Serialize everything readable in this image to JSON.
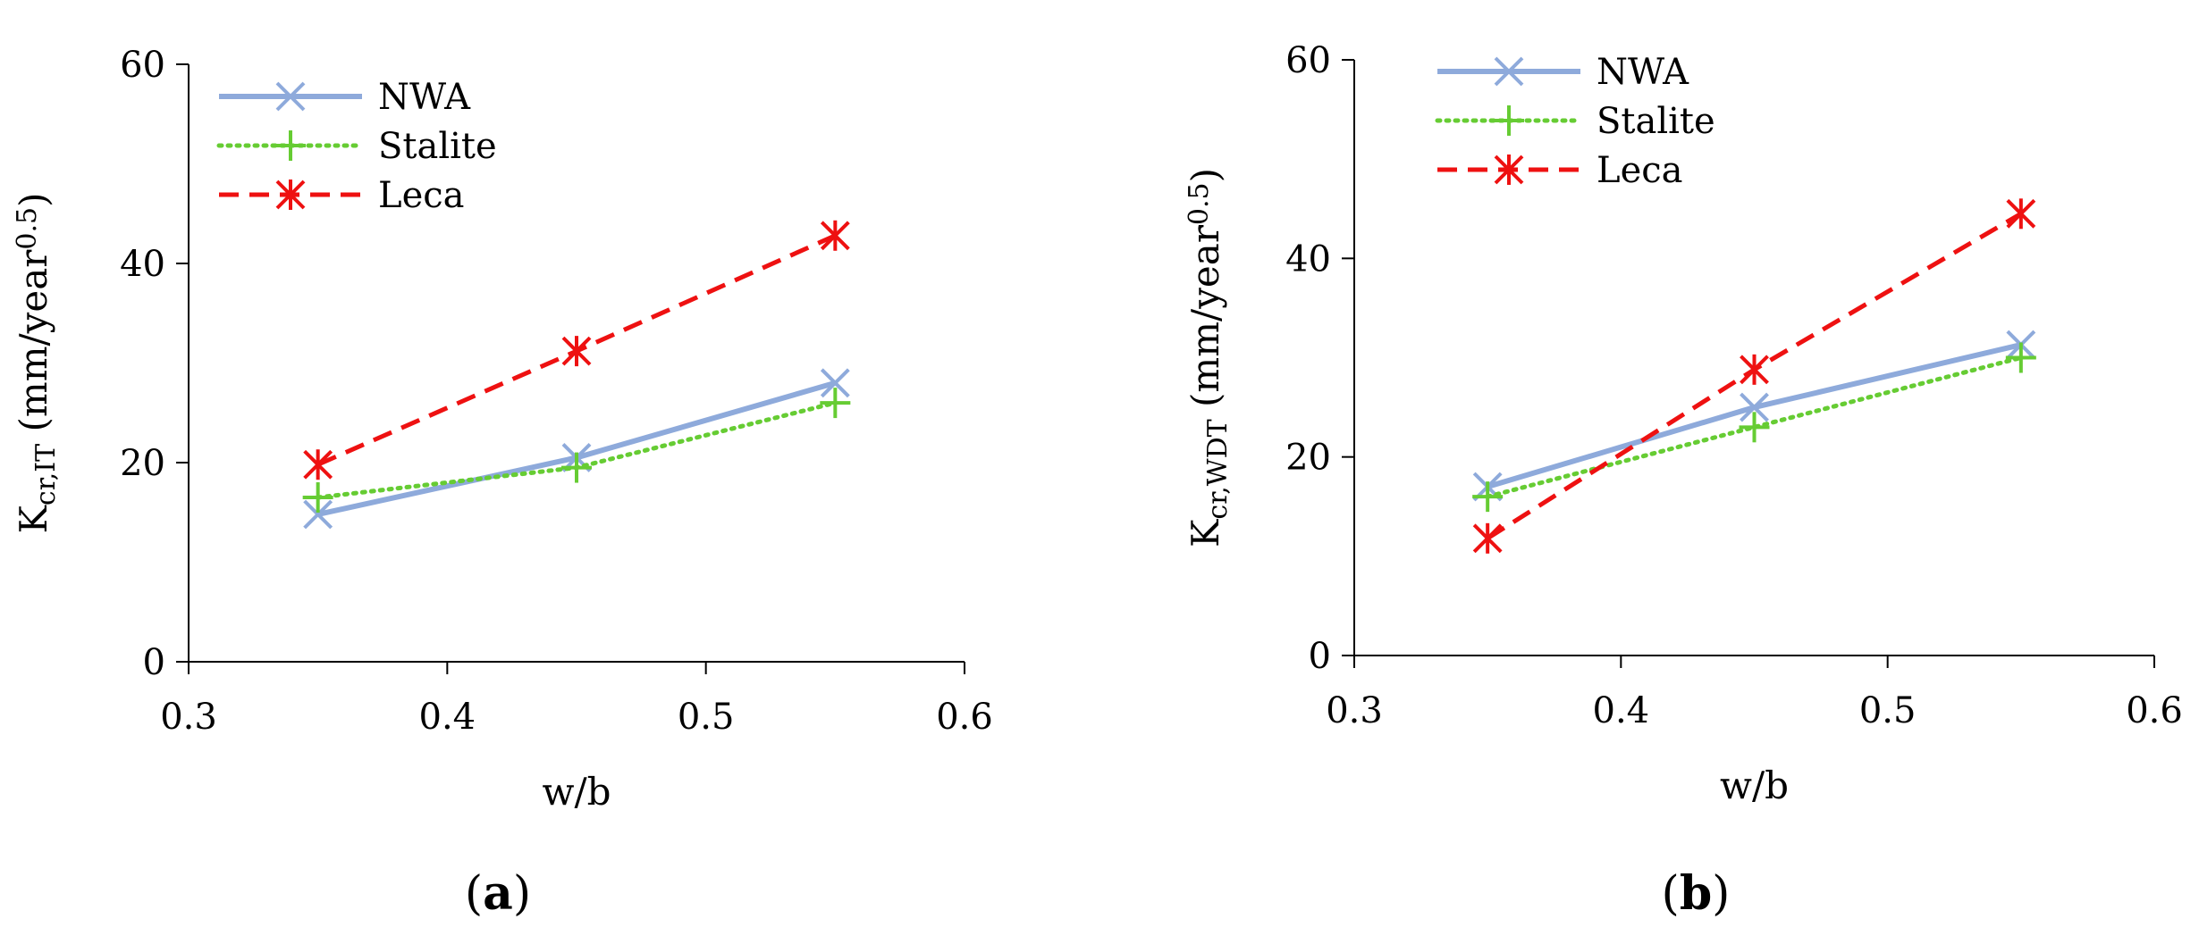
{
  "chart_data": [
    {
      "id": "a",
      "type": "line",
      "panel_label": "a",
      "xlabel": "w/b",
      "ylabel_main": "K",
      "ylabel_sub": "cr,IT",
      "ylabel_rest": " (mm/year",
      "ylabel_sup": "0.5",
      "ylabel_close": ")",
      "xlim": [
        0.3,
        0.6
      ],
      "ylim": [
        0,
        60
      ],
      "xticks": [
        "0.3",
        "0.4",
        "0.5",
        "0.6"
      ],
      "yticks": [
        "0",
        "20",
        "40",
        "60"
      ],
      "legend_position": "top-left",
      "x": [
        0.35,
        0.45,
        0.55
      ],
      "series": [
        {
          "name": "NWA",
          "values": [
            14.8,
            20.5,
            28.0
          ],
          "color": "#8EAADB",
          "style": "solid",
          "marker": "x"
        },
        {
          "name": "Stalite",
          "values": [
            16.5,
            19.5,
            26.0
          ],
          "color": "#66CC33",
          "style": "dotted",
          "marker": "plus"
        },
        {
          "name": "Leca",
          "values": [
            19.8,
            31.2,
            42.8
          ],
          "color": "#EE1111",
          "style": "dashed",
          "marker": "star"
        }
      ]
    },
    {
      "id": "b",
      "type": "line",
      "panel_label": "b",
      "xlabel": "w/b",
      "ylabel_main": "K",
      "ylabel_sub": "cr,WDT",
      "ylabel_rest": " (mm/year",
      "ylabel_sup": "0.5",
      "ylabel_close": ")",
      "xlim": [
        0.3,
        0.6
      ],
      "ylim": [
        0,
        60
      ],
      "xticks": [
        "0.3",
        "0.4",
        "0.5",
        "0.6"
      ],
      "yticks": [
        "0",
        "20",
        "40",
        "60"
      ],
      "legend_position": "top-left",
      "x": [
        0.35,
        0.45,
        0.55
      ],
      "series": [
        {
          "name": "NWA",
          "values": [
            17.0,
            25.0,
            31.3
          ],
          "color": "#8EAADB",
          "style": "solid",
          "marker": "x"
        },
        {
          "name": "Stalite",
          "values": [
            16.0,
            23.0,
            30.0
          ],
          "color": "#66CC33",
          "style": "dotted",
          "marker": "plus"
        },
        {
          "name": "Leca",
          "values": [
            11.8,
            28.8,
            44.5
          ],
          "color": "#EE1111",
          "style": "dashed",
          "marker": "star"
        }
      ]
    }
  ]
}
